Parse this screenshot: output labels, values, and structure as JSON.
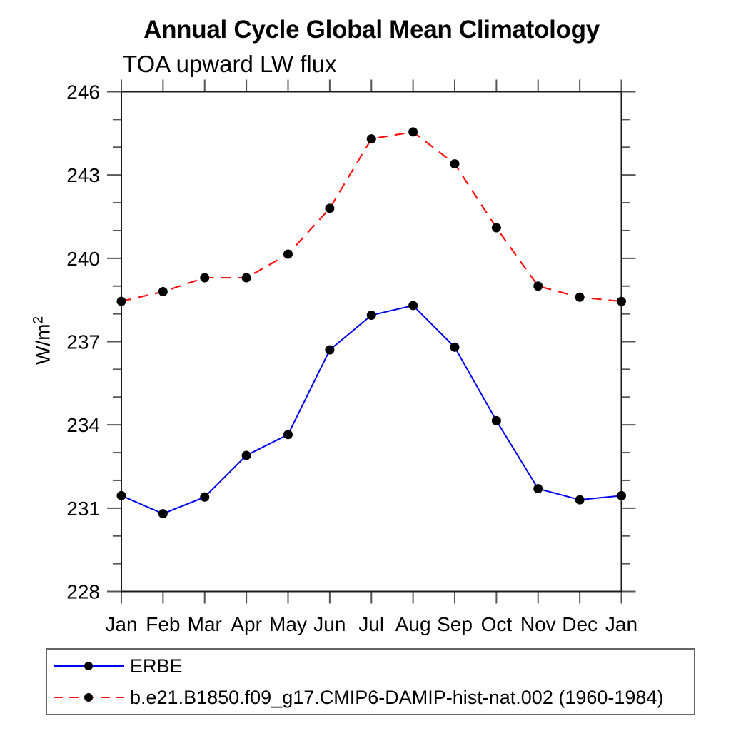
{
  "chart_data": {
    "type": "line",
    "title": "Annual Cycle Global Mean Climatology",
    "subtitle": "TOA upward LW flux",
    "ylabel": "W/m^2",
    "ylabel_base": "W/m",
    "ylabel_exponent": "2",
    "x": [
      "Jan",
      "Feb",
      "Mar",
      "Apr",
      "May",
      "Jun",
      "Jul",
      "Aug",
      "Sep",
      "Oct",
      "Nov",
      "Dec",
      "Jan"
    ],
    "ylim": [
      228,
      246
    ],
    "y_major_tick_step": 3,
    "y_minor_tick_step": 1,
    "y_major_tick_labels": [
      "228",
      "231",
      "234",
      "237",
      "240",
      "243",
      "246"
    ],
    "grid": false,
    "legend_position": "bottom box",
    "series": [
      {
        "name": "ERBE",
        "line_color": "#0000ee",
        "line_style": "solid",
        "marker": "filled-circle",
        "marker_color": "#000000",
        "values": [
          231.45,
          230.8,
          231.4,
          232.9,
          233.65,
          236.7,
          237.95,
          238.3,
          236.8,
          234.15,
          231.7,
          231.3,
          231.45
        ]
      },
      {
        "name": "b.e21.B1850.f09_g17.CMIP6-DAMIP-hist-nat.002 (1960-1984)",
        "line_color": "#ff1111",
        "line_style": "dashed",
        "marker": "filled-circle",
        "marker_color": "#000000",
        "values": [
          238.45,
          238.8,
          239.3,
          239.3,
          240.15,
          241.8,
          244.3,
          244.55,
          243.4,
          241.1,
          239.0,
          238.6,
          238.45
        ]
      }
    ]
  },
  "colors": {
    "background": "#ffffff",
    "frame": "#1a1a1a",
    "ticks": "#555555",
    "text": "#000000",
    "erbe_line": "#0000ee",
    "model_line": "#ff1111",
    "marker": "#000000",
    "legend_border": "#666666"
  }
}
